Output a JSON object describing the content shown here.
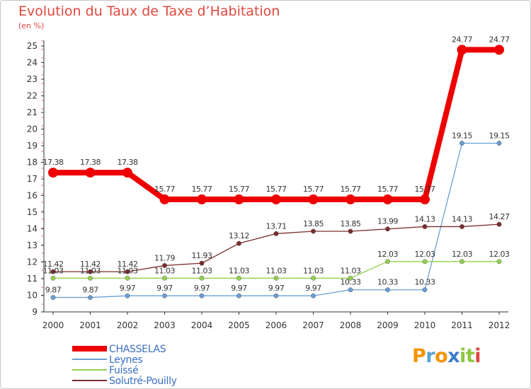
{
  "header": {
    "title": "Evolution du Taux de Taxe d’Habitation",
    "unit": "(en %)"
  },
  "logo": {
    "letters": [
      "P",
      "r",
      "o",
      "x",
      "i",
      "t",
      "i"
    ],
    "colors": [
      "#f29400",
      "#5aa3d6",
      "#f29400",
      "#3a7dc9",
      "#8cc63f",
      "#8cc63f",
      "#e0473e"
    ]
  },
  "chart_data": {
    "type": "line",
    "title": "Evolution du Taux de Taxe d’Habitation",
    "ylabel": "(en %)",
    "xlabel": "",
    "categories": [
      "2000",
      "2001",
      "2002",
      "2003",
      "2004",
      "2005",
      "2006",
      "2007",
      "2008",
      "2009",
      "2010",
      "2011",
      "2012"
    ],
    "ylim": [
      9,
      25
    ],
    "yticks": [
      "9",
      "10",
      "11",
      "12",
      "13",
      "14",
      "15",
      "16",
      "17",
      "18",
      "19",
      "20",
      "21",
      "22",
      "23",
      "24",
      "25"
    ],
    "grid": false,
    "legend_position": "bottom-left",
    "series": [
      {
        "name": "CHASSELAS",
        "color": "#ee0000",
        "width": 8,
        "marker": 7,
        "values": [
          17.38,
          17.38,
          17.38,
          15.77,
          15.77,
          15.77,
          15.77,
          15.77,
          15.77,
          15.77,
          15.77,
          24.77,
          24.77
        ],
        "labels": [
          "17.38",
          "17.38",
          "17.38",
          "15.77",
          "15.77",
          "15.77",
          "15.77",
          "15.77",
          "15.77",
          "15.77",
          "15.77",
          "24.77",
          "24.77"
        ]
      },
      {
        "name": "Leynes",
        "color": "#6b9fd2",
        "width": 1.3,
        "marker": 3.2,
        "values": [
          9.87,
          9.87,
          9.97,
          9.97,
          9.97,
          9.97,
          9.97,
          9.97,
          10.33,
          10.33,
          10.33,
          19.15,
          19.15
        ],
        "labels": [
          "9.87",
          "9.87",
          "9.97",
          "9.97",
          "9.97",
          "9.97",
          "9.97",
          "9.97",
          "10.33",
          "10.33",
          "10.33",
          "19.15",
          "19.15"
        ]
      },
      {
        "name": "Fuissé",
        "color": "#92d050",
        "width": 1.3,
        "marker": 3.2,
        "values": [
          11.03,
          11.03,
          11.03,
          11.03,
          11.03,
          11.03,
          11.03,
          11.03,
          11.03,
          12.03,
          12.03,
          12.03,
          12.03
        ],
        "labels": [
          "11.03",
          "11.03",
          "11.03",
          "11.03",
          "11.03",
          "11.03",
          "11.03",
          "11.03",
          "11.03",
          "12.03",
          "12.03",
          "12.03",
          "12.03"
        ]
      },
      {
        "name": "Solutré-Pouilly",
        "color": "#7a2d2d",
        "width": 1.3,
        "marker": 3.2,
        "values": [
          11.42,
          11.42,
          11.42,
          11.79,
          11.93,
          13.12,
          13.71,
          13.85,
          13.85,
          13.99,
          14.13,
          14.13,
          14.27
        ],
        "labels": [
          "11.42",
          "11.42",
          "11.42",
          "11.79",
          "11.93",
          "13.12",
          "13.71",
          "13.85",
          "13.85",
          "13.99",
          "14.13",
          "14.13",
          "14.27"
        ]
      }
    ],
    "legend": [
      {
        "name": "CHASSELAS",
        "color": "#ee0000",
        "text_color": "#3a6fc2"
      },
      {
        "name": "Leynes",
        "color": "#6b9fd2",
        "text_color": "#3a6fc2"
      },
      {
        "name": "Fuissé",
        "color": "#92d050",
        "text_color": "#3a6fc2"
      },
      {
        "name": "Solutré-Pouilly",
        "color": "#7a2d2d",
        "text_color": "#3a6fc2"
      }
    ]
  }
}
